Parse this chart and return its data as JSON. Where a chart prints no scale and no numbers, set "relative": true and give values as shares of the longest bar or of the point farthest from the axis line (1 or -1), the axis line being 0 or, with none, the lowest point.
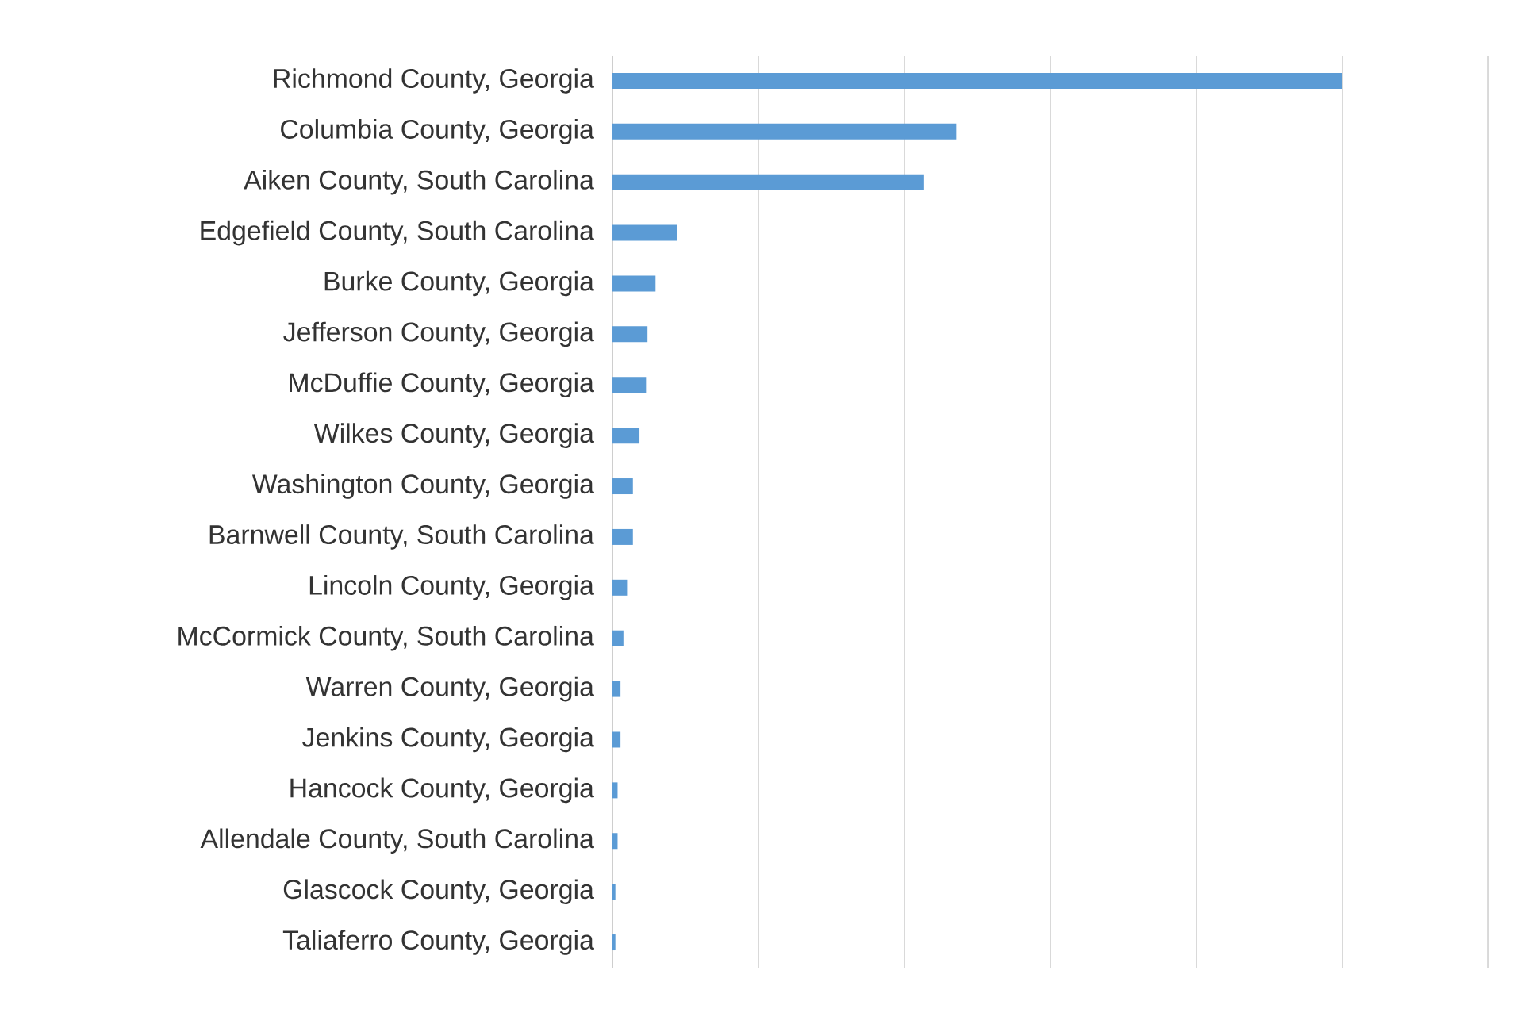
{
  "chart_data": {
    "type": "bar",
    "orientation": "horizontal",
    "relative": true,
    "grid": "x",
    "color": "#5b9bd5",
    "categories": [
      "Richmond County, Georgia",
      "Columbia County, Georgia",
      "Aiken County, South Carolina",
      "Edgefield County, South Carolina",
      "Burke County, Georgia",
      "Jefferson County, Georgia",
      "McDuffie County, Georgia",
      "Wilkes County, Georgia",
      "Washington County, Georgia",
      "Barnwell County, South Carolina",
      "Lincoln County, Georgia",
      "McCormick County, South Carolina",
      "Warren County, Georgia",
      "Jenkins County, Georgia",
      "Hancock County, Georgia",
      "Allendale County, South Carolina",
      "Glascock County, Georgia",
      "Taliaferro County, Georgia"
    ],
    "values": [
      1,
      0.471,
      0.427,
      0.089,
      0.059,
      0.048,
      0.046,
      0.037,
      0.028,
      0.028,
      0.02,
      0.015,
      0.011,
      0.011,
      0.007,
      0.007,
      0.004,
      0.004
    ]
  }
}
